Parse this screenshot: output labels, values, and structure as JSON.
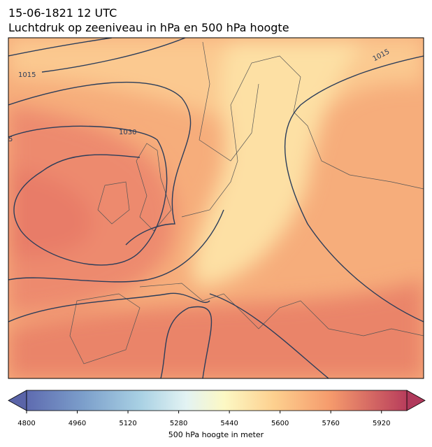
{
  "header": {
    "date": "15-06-1821 12 UTC",
    "title": "Luchtdruk op zeeniveau in hPa en 500 hPa hoogte"
  },
  "map": {
    "isobar_labels": [
      "1015",
      "1030",
      "1015",
      "5"
    ]
  },
  "colorbar": {
    "lim": [
      4800,
      6000
    ],
    "ticks": [
      4800,
      4960,
      5120,
      5280,
      5440,
      5600,
      5760,
      5920
    ],
    "label": "500 hPa hoogte in meter"
  }
}
